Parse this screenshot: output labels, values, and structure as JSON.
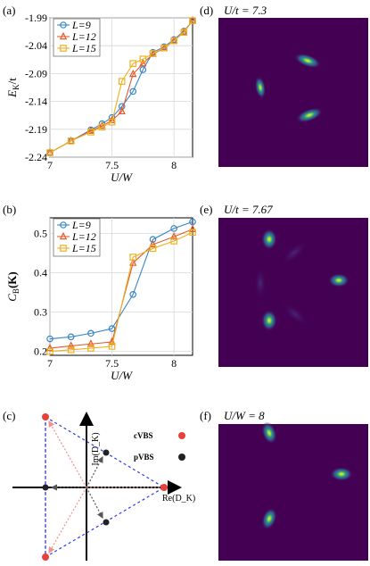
{
  "panel_labels": {
    "a": "(a)",
    "b": "(b)",
    "c": "(c)",
    "d": "(d)",
    "e": "(e)",
    "f": "(f)"
  },
  "heatmap_titles": {
    "d": "U/t = 7.3",
    "e": "U/t = 7.67",
    "f": "U/W = 8"
  },
  "colors": {
    "L9": "#3a85c6",
    "L12": "#e25a2c",
    "L15": "#edb120",
    "cVBS": "#e8403a",
    "pVBS": "#222222",
    "heatmap_bg": "#440154"
  },
  "schematic": {
    "y_axis_label": "Im(D_K)",
    "x_axis_label": "Re(D_K)",
    "legend": [
      {
        "name": "cVBS",
        "color": "#e8403a"
      },
      {
        "name": "pVBS",
        "color": "#222222"
      }
    ]
  },
  "chart_data": [
    {
      "type": "line",
      "panel": "(a)",
      "xlabel": "U/W",
      "ylabel": "E_K/t",
      "xlim": [
        7.0,
        8.15
      ],
      "ylim": [
        -2.24,
        -1.99
      ],
      "xticks": [
        7,
        7.5,
        8
      ],
      "xtick_labels": [
        "7",
        "7.5",
        "8"
      ],
      "yticks": [
        -2.24,
        -2.19,
        -2.14,
        -2.09,
        -2.04,
        -1.99
      ],
      "ytick_labels": [
        "-2.24",
        "-2.19",
        "-2.14",
        "-2.09",
        "-2.04",
        "-1.99"
      ],
      "legend_position": "top-left",
      "series": [
        {
          "name": "L=9",
          "marker": "circle",
          "color": "#3a85c6",
          "x": [
            7.0,
            7.17,
            7.33,
            7.42,
            7.5,
            7.58,
            7.67,
            7.75,
            7.83,
            7.92,
            8.0,
            8.08,
            8.15
          ],
          "y": [
            -2.232,
            -2.211,
            -2.191,
            -2.18,
            -2.169,
            -2.149,
            -2.122,
            -2.083,
            -2.052,
            -2.042,
            -2.029,
            -2.014,
            -1.995
          ]
        },
        {
          "name": "L=12",
          "marker": "triangle",
          "color": "#e25a2c",
          "x": [
            7.0,
            7.17,
            7.33,
            7.42,
            7.5,
            7.58,
            7.67,
            7.75,
            7.83,
            7.92,
            8.0,
            8.08,
            8.15
          ],
          "y": [
            -2.232,
            -2.211,
            -2.193,
            -2.184,
            -2.174,
            -2.158,
            -2.091,
            -2.072,
            -2.055,
            -2.045,
            -2.031,
            -2.016,
            -1.995
          ]
        },
        {
          "name": "L=15",
          "marker": "square",
          "color": "#edb120",
          "x": [
            7.0,
            7.17,
            7.33,
            7.42,
            7.5,
            7.58,
            7.67,
            7.75,
            7.83,
            7.92,
            8.0,
            8.08,
            8.15
          ],
          "y": [
            -2.232,
            -2.211,
            -2.195,
            -2.186,
            -2.177,
            -2.104,
            -2.072,
            -2.064,
            -2.054,
            -2.044,
            -2.031,
            -2.016,
            -1.995
          ]
        }
      ]
    },
    {
      "type": "line",
      "panel": "(b)",
      "xlabel": "U/W",
      "ylabel": "C_B(K)",
      "xlim": [
        7.0,
        8.15
      ],
      "ylim": [
        0.19,
        0.54
      ],
      "xticks": [
        7,
        7.5,
        8
      ],
      "xtick_labels": [
        "7",
        "7.5",
        "8"
      ],
      "yticks": [
        0.2,
        0.3,
        0.4,
        0.5
      ],
      "ytick_labels": [
        "0.2",
        "0.3",
        "0.4",
        "0.5"
      ],
      "legend_position": "top-left",
      "series": [
        {
          "name": "L=9",
          "marker": "circle",
          "color": "#3a85c6",
          "x": [
            7.0,
            7.17,
            7.33,
            7.5,
            7.67,
            7.83,
            8.0,
            8.15
          ],
          "y": [
            0.232,
            0.237,
            0.246,
            0.258,
            0.345,
            0.485,
            0.513,
            0.53
          ]
        },
        {
          "name": "L=12",
          "marker": "triangle",
          "color": "#e25a2c",
          "x": [
            7.0,
            7.17,
            7.33,
            7.5,
            7.67,
            7.83,
            8.0,
            8.15
          ],
          "y": [
            0.208,
            0.214,
            0.219,
            0.224,
            0.425,
            0.472,
            0.492,
            0.511
          ]
        },
        {
          "name": "L=15",
          "marker": "square",
          "color": "#edb120",
          "x": [
            7.0,
            7.17,
            7.33,
            7.5,
            7.67,
            7.83,
            8.0,
            8.15
          ],
          "y": [
            0.2,
            0.204,
            0.208,
            0.213,
            0.44,
            0.462,
            0.481,
            0.503
          ]
        }
      ]
    }
  ]
}
